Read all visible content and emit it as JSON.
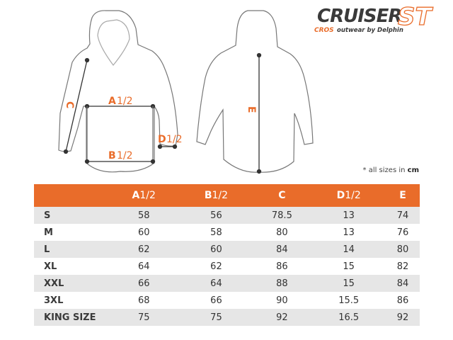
{
  "logo": {
    "brand": "CRUISER",
    "model": "ST",
    "sub_brand": "CROS",
    "tagline": "outwear by Delphin"
  },
  "diagram": {
    "labels": {
      "a": "A",
      "a_half": "1/2",
      "b": "B",
      "b_half": "1/2",
      "c": "C",
      "d": "D",
      "d_half": "1/2",
      "e": "E"
    }
  },
  "note": {
    "text": "* all sizes in ",
    "unit": "cm"
  },
  "colors": {
    "accent": "#e96c2a",
    "row_alt": "#e6e6e6"
  },
  "table": {
    "headers": [
      {
        "letter": "",
        "half": ""
      },
      {
        "letter": "A",
        "half": "1/2"
      },
      {
        "letter": "B",
        "half": "1/2"
      },
      {
        "letter": "C",
        "half": ""
      },
      {
        "letter": "D",
        "half": "1/2"
      },
      {
        "letter": "E",
        "half": ""
      }
    ],
    "rows": [
      [
        "S",
        "58",
        "56",
        "78.5",
        "13",
        "74"
      ],
      [
        "M",
        "60",
        "58",
        "80",
        "13",
        "76"
      ],
      [
        "L",
        "62",
        "60",
        "84",
        "14",
        "80"
      ],
      [
        "XL",
        "64",
        "62",
        "86",
        "15",
        "82"
      ],
      [
        "XXL",
        "66",
        "64",
        "88",
        "15",
        "84"
      ],
      [
        "3XL",
        "68",
        "66",
        "90",
        "15.5",
        "86"
      ],
      [
        "KING SIZE",
        "75",
        "75",
        "92",
        "16.5",
        "92"
      ]
    ]
  }
}
